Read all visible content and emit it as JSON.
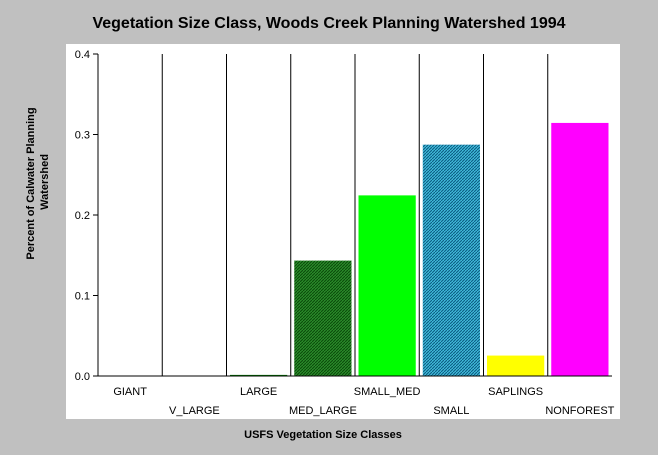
{
  "chart_data": {
    "type": "bar",
    "title": "Vegetation Size Class, Woods Creek Planning Watershed 1994",
    "xlabel": "USFS Vegetation Size Classes",
    "ylabel_lines": [
      "Percent of Calwater Planning",
      "Watershed"
    ],
    "ylim": [
      0,
      0.4
    ],
    "yticks": [
      "0.0",
      "0.1",
      "0.2",
      "0.3",
      "0.4"
    ],
    "grid": "vertical category dividers",
    "categories": [
      "GIANT",
      "V_LARGE",
      "LARGE",
      "MED_LARGE",
      "SMALL_MED",
      "SMALL",
      "SAPLINGS",
      "NONFOREST"
    ],
    "values": [
      0,
      0,
      0.002,
      0.144,
      0.225,
      0.288,
      0.026,
      0.315
    ],
    "colors": [
      "#008000",
      "#008000",
      "#008000",
      "#008000",
      "#00ff00",
      "#00c8d8",
      "#ffff00",
      "#ff00ff"
    ],
    "patterns": [
      "none",
      "none",
      "none",
      "hatch-dark-green",
      "none",
      "hatch-cyan",
      "none",
      "none"
    ]
  }
}
